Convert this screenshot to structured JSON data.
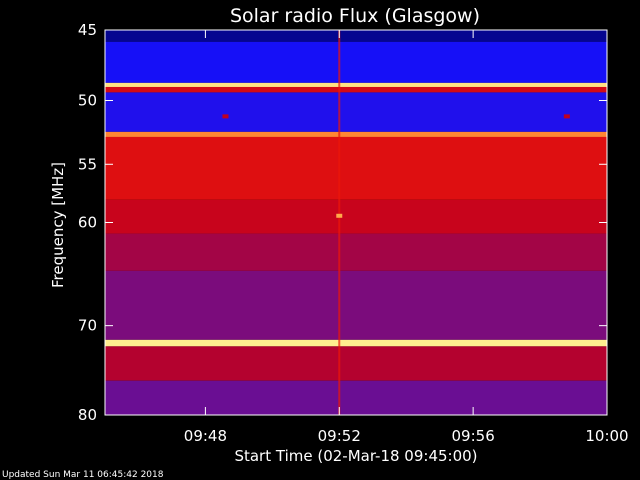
{
  "chart_data": {
    "type": "heatmap",
    "title": "Solar radio Flux (Glasgow)",
    "xlabel": "Start Time (02-Mar-18 09:45:00)",
    "ylabel": "Frequency [MHz]",
    "footer": "Updated Sun Mar 11 06:45:42 2018",
    "x_range_minutes_after_0945": [
      0,
      15
    ],
    "x_ticks": [
      {
        "label": "09:48",
        "minutes_after_0945": 3
      },
      {
        "label": "09:52",
        "minutes_after_0945": 7
      },
      {
        "label": "09:56",
        "minutes_after_0945": 11
      },
      {
        "label": "10:00",
        "minutes_after_0945": 15
      }
    ],
    "y_axis_scale": "log",
    "y_range_mhz": [
      45,
      80
    ],
    "y_ticks": [
      45,
      50,
      55,
      60,
      70,
      80
    ],
    "colormap": [
      "#000060",
      "#1010ff",
      "#6010a0",
      "#c00020",
      "#ff2000",
      "#ffa040",
      "#ffffa0"
    ],
    "bands": [
      {
        "from_mhz": 45.0,
        "to_mhz": 45.8,
        "level": 0.05
      },
      {
        "from_mhz": 45.8,
        "to_mhz": 48.7,
        "level": 0.18
      },
      {
        "from_mhz": 48.7,
        "to_mhz": 49.0,
        "level": 0.95
      },
      {
        "from_mhz": 49.0,
        "to_mhz": 49.4,
        "level": 0.55
      },
      {
        "from_mhz": 49.4,
        "to_mhz": 52.4,
        "level": 0.2
      },
      {
        "from_mhz": 52.4,
        "to_mhz": 52.8,
        "level": 0.8
      },
      {
        "from_mhz": 52.8,
        "to_mhz": 58.0,
        "level": 0.58
      },
      {
        "from_mhz": 58.0,
        "to_mhz": 61.0,
        "level": 0.52
      },
      {
        "from_mhz": 61.0,
        "to_mhz": 64.5,
        "level": 0.45
      },
      {
        "from_mhz": 64.5,
        "to_mhz": 71.5,
        "level": 0.38
      },
      {
        "from_mhz": 71.5,
        "to_mhz": 72.2,
        "level": 0.97
      },
      {
        "from_mhz": 72.2,
        "to_mhz": 76.0,
        "level": 0.48
      },
      {
        "from_mhz": 76.0,
        "to_mhz": 80.0,
        "level": 0.35
      }
    ],
    "features": [
      {
        "kind": "vertical-line",
        "at_minutes": 7.0,
        "level": 0.62
      },
      {
        "kind": "spot",
        "at_minutes": 7.0,
        "at_mhz": 59.4,
        "level": 0.85
      },
      {
        "kind": "spot",
        "at_minutes": 3.6,
        "at_mhz": 51.2,
        "level": 0.5
      },
      {
        "kind": "spot",
        "at_minutes": 13.8,
        "at_mhz": 51.2,
        "level": 0.5
      }
    ]
  }
}
